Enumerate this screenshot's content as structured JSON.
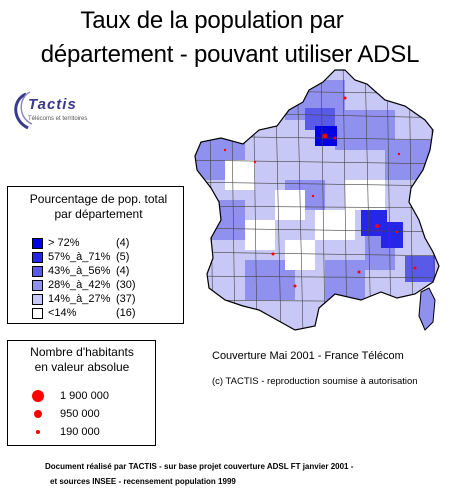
{
  "title": {
    "line1": "Taux de la population par",
    "line2": "département - pouvant utiliser ADSL"
  },
  "logo": {
    "name": "Tactis",
    "tagline": "Télécoms et territoires"
  },
  "legend_percent": {
    "title_line1": "Pourcentage de pop. total",
    "title_line2": "par département",
    "classes": [
      {
        "label": "> 72%",
        "count": "(4)",
        "color": "#0000e6"
      },
      {
        "label": "57%_à_71%",
        "count": "(5)",
        "color": "#2626e6"
      },
      {
        "label": "43%_à_56%",
        "count": "(4)",
        "color": "#5a5ae8"
      },
      {
        "label": "28%_à_42%",
        "count": "(30)",
        "color": "#9090ee"
      },
      {
        "label": "14%_à_27%",
        "count": "(37)",
        "color": "#c8c8f6"
      },
      {
        "label": "<14%",
        "count": "(16)",
        "color": "#ffffff"
      }
    ]
  },
  "legend_inhabitants": {
    "title_line1": "Nombre d'habitants",
    "title_line2": "en valeur absolue",
    "items": [
      {
        "label": "1 900 000",
        "value": 1900000
      },
      {
        "label": "950 000",
        "value": 950000
      },
      {
        "label": "190 000",
        "value": 190000
      }
    ],
    "color": "#ff0000"
  },
  "coverage_note": "Couverture Mai 2001 - France Télécom",
  "copyright_note": "(c) TACTIS - reproduction soumise à autorisation",
  "footer": {
    "line1": "Document réalisé par TACTIS - sur base projet couverture ADSL FT janvier 2001 -",
    "line2": "et sources INSEE - recensement population 1999"
  },
  "map": {
    "outline_color": "#000000",
    "border_color": "#444444",
    "marker_color": "#ff0000"
  }
}
